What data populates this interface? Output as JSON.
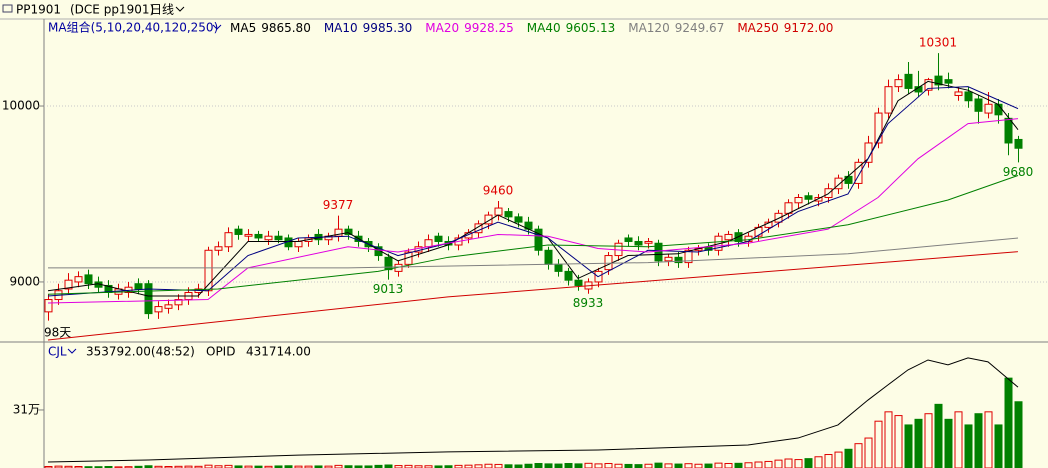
{
  "chart_data": {
    "type": "candlestick",
    "title": "PP1901",
    "subtitle": "(DCE pp1901)",
    "period": "日线",
    "ma_group": "MA组合(5,10,20,40,120,250)",
    "days_label": "98天",
    "ylim": [
      8670,
      10489
    ],
    "yticks": [
      9000,
      10000
    ],
    "grid": true,
    "up_color": "#e00000",
    "down_color": "#008000",
    "open": [
      8830,
      8900,
      8960,
      9000,
      9040,
      9000,
      8980,
      8930,
      8940,
      8990,
      8990,
      8830,
      8850,
      8870,
      8900,
      8940,
      8950,
      9180,
      9200,
      9300,
      9260,
      9270,
      9240,
      9260,
      9250,
      9200,
      9230,
      9270,
      9240,
      9260,
      9300,
      9260,
      9230,
      9200,
      9140,
      9060,
      9100,
      9170,
      9200,
      9260,
      9230,
      9210,
      9250,
      9280,
      9330,
      9380,
      9400,
      9370,
      9340,
      9300,
      9180,
      9100,
      9060,
      9010,
      8960,
      9000,
      9070,
      9150,
      9250,
      9230,
      9220,
      9220,
      9120,
      9140,
      9110,
      9180,
      9200,
      9180,
      9240,
      9280,
      9230,
      9260,
      9310,
      9340,
      9390,
      9450,
      9490,
      9460,
      9480,
      9530,
      9600,
      9560,
      9680,
      9790,
      9960,
      10110,
      10180,
      10110,
      10090,
      10170,
      10150,
      10060,
      10080,
      10040,
      9960,
      10010,
      9930,
      9810
    ],
    "high": [
      8930,
      8990,
      9050,
      9060,
      9070,
      9030,
      9010,
      8990,
      9000,
      9020,
      9010,
      8890,
      8900,
      8930,
      8970,
      8990,
      9200,
      9230,
      9310,
      9320,
      9300,
      9290,
      9290,
      9290,
      9270,
      9250,
      9270,
      9300,
      9280,
      9377,
      9320,
      9290,
      9250,
      9220,
      9160,
      9120,
      9190,
      9230,
      9270,
      9280,
      9260,
      9270,
      9300,
      9350,
      9400,
      9460,
      9420,
      9390,
      9370,
      9320,
      9200,
      9130,
      9080,
      9040,
      9020,
      9080,
      9170,
      9240,
      9270,
      9260,
      9250,
      9240,
      9160,
      9170,
      9200,
      9210,
      9220,
      9280,
      9290,
      9300,
      9280,
      9330,
      9360,
      9410,
      9470,
      9500,
      9510,
      9500,
      9560,
      9610,
      9630,
      9700,
      9830,
      9990,
      10150,
      10180,
      10250,
      10200,
      10160,
      10301,
      10190,
      10110,
      10110,
      10060,
      10080,
      10040,
      9960,
      9830
    ],
    "low": [
      8780,
      8870,
      8930,
      8970,
      8960,
      8940,
      8910,
      8900,
      8910,
      8930,
      8790,
      8790,
      8820,
      8840,
      8870,
      8910,
      8920,
      9150,
      9170,
      9240,
      9230,
      9230,
      9210,
      9220,
      9180,
      9170,
      9200,
      9210,
      9210,
      9230,
      9240,
      9200,
      9170,
      9120,
      9013,
      9030,
      9080,
      9140,
      9170,
      9200,
      9180,
      9180,
      9220,
      9250,
      9300,
      9350,
      9340,
      9310,
      9270,
      9150,
      9070,
      9030,
      8980,
      8950,
      8933,
      8970,
      9040,
      9120,
      9200,
      9180,
      9190,
      9090,
      9090,
      9080,
      9080,
      9150,
      9150,
      9150,
      9200,
      9200,
      9200,
      9230,
      9280,
      9310,
      9360,
      9420,
      9440,
      9430,
      9450,
      9500,
      9530,
      9530,
      9650,
      9760,
      9930,
      10080,
      10070,
      10050,
      10060,
      10090,
      10100,
      10030,
      9990,
      9900,
      9930,
      9900,
      9720,
      9680
    ],
    "close": [
      8900,
      8950,
      9010,
      9030,
      8990,
      8970,
      8940,
      8960,
      8970,
      8960,
      8820,
      8860,
      8870,
      8900,
      8940,
      8960,
      9180,
      9200,
      9280,
      9270,
      9270,
      9250,
      9260,
      9240,
      9200,
      9230,
      9250,
      9240,
      9260,
      9300,
      9270,
      9230,
      9200,
      9150,
      9070,
      9100,
      9170,
      9200,
      9240,
      9230,
      9210,
      9250,
      9280,
      9330,
      9380,
      9420,
      9370,
      9340,
      9300,
      9180,
      9100,
      9060,
      9010,
      8980,
      9000,
      9060,
      9150,
      9220,
      9230,
      9210,
      9230,
      9120,
      9140,
      9110,
      9180,
      9190,
      9180,
      9260,
      9270,
      9230,
      9260,
      9310,
      9340,
      9390,
      9450,
      9480,
      9470,
      9480,
      9530,
      9590,
      9560,
      9680,
      9790,
      9960,
      10110,
      10150,
      10100,
      10080,
      10150,
      10120,
      10130,
      10080,
      10030,
      9970,
      10010,
      9950,
      9790,
      9760
    ],
    "annotations": [
      {
        "text": "9377",
        "color": "#e00000"
      },
      {
        "text": "9460",
        "color": "#e00000"
      },
      {
        "text": "10301",
        "color": "#e00000"
      },
      {
        "text": "9013",
        "color": "#008000"
      },
      {
        "text": "8933",
        "color": "#008000"
      },
      {
        "text": "9680",
        "color": "#008000"
      }
    ],
    "series": [
      {
        "name": "MA5",
        "legend_value": "9865.80",
        "color": "#000000",
        "x": [
          0,
          5,
          10,
          15,
          20,
          25,
          30,
          35,
          40,
          45,
          50,
          53,
          58,
          63,
          68,
          73,
          78,
          82,
          85,
          88,
          92,
          95,
          97
        ],
        "values": [
          8950,
          8990,
          8920,
          8920,
          9230,
          9230,
          9280,
          9120,
          9210,
          9380,
          9250,
          9020,
          9150,
          9160,
          9230,
          9360,
          9500,
          9700,
          10030,
          10140,
          10090,
          10010,
          9865.8
        ]
      },
      {
        "name": "MA10",
        "legend_value": "9985.30",
        "color": "#000080",
        "x": [
          0,
          10,
          16,
          20,
          25,
          30,
          35,
          40,
          45,
          50,
          55,
          60,
          65,
          70,
          75,
          80,
          84,
          88,
          92,
          97
        ],
        "values": [
          8920,
          8960,
          8950,
          9150,
          9250,
          9260,
          9150,
          9220,
          9340,
          9250,
          9030,
          9180,
          9170,
          9230,
          9400,
          9500,
          9900,
          10100,
          10110,
          9985.3
        ]
      },
      {
        "name": "MA20",
        "legend_value": "9928.25",
        "color": "#e000e0",
        "x": [
          0,
          16,
          20,
          30,
          35,
          45,
          50,
          55,
          60,
          70,
          78,
          83,
          87,
          92,
          97
        ],
        "values": [
          8880,
          8900,
          9080,
          9200,
          9170,
          9270,
          9260,
          9190,
          9170,
          9220,
          9300,
          9480,
          9700,
          9900,
          9928.25
        ]
      },
      {
        "name": "MA40",
        "legend_value": "9605.13",
        "color": "#008000",
        "x": [
          0,
          17,
          33,
          40,
          50,
          60,
          70,
          80,
          90,
          97
        ],
        "values": [
          8930,
          8960,
          9060,
          9140,
          9210,
          9200,
          9240,
          9325,
          9466,
          9605.13
        ]
      },
      {
        "name": "MA120",
        "legend_value": "9249.67",
        "color": "#808080",
        "x": [
          0,
          30,
          60,
          80,
          97
        ],
        "values": [
          9080,
          9080,
          9110,
          9160,
          9249.67
        ]
      },
      {
        "name": "MA250",
        "legend_value": "9172.00",
        "color": "#d00000",
        "x": [
          0,
          40,
          70,
          97
        ],
        "values": [
          8670,
          8915,
          9050,
          9172
        ]
      }
    ],
    "volume_pane": {
      "name": "CJL",
      "header": "353792.00(48:52)",
      "opid_name": "OPID",
      "opid_header": "431714.00",
      "ylim": [
        0,
        657000
      ],
      "yticks": [
        {
          "value": 310000,
          "label": "31万"
        }
      ],
      "values": [
        8000,
        10000,
        9000,
        8000,
        7000,
        7000,
        8000,
        6000,
        7000,
        9000,
        12000,
        9000,
        8000,
        9000,
        10000,
        9000,
        15000,
        12000,
        14000,
        11000,
        10000,
        10000,
        9000,
        11000,
        12000,
        10000,
        10000,
        11000,
        10000,
        14000,
        12000,
        11000,
        11000,
        14000,
        16000,
        13000,
        14000,
        12000,
        12000,
        11000,
        12000,
        14000,
        15000,
        17000,
        20000,
        19000,
        17000,
        16000,
        20000,
        24000,
        22000,
        21000,
        24000,
        22000,
        25000,
        22000,
        24000,
        20000,
        19000,
        18000,
        20000,
        26000,
        22000,
        21000,
        23000,
        20000,
        21000,
        26000,
        24000,
        25000,
        28000,
        32000,
        35000,
        42000,
        48000,
        45000,
        50000,
        60000,
        72000,
        85000,
        100000,
        130000,
        160000,
        250000,
        300000,
        280000,
        230000,
        260000,
        290000,
        340000,
        260000,
        300000,
        230000,
        290000,
        300000,
        230000,
        480000,
        353792
      ],
      "opid": {
        "color": "#000000",
        "x": [
          0,
          10,
          25,
          40,
          55,
          70,
          75,
          79,
          82,
          84,
          86,
          88,
          90,
          92,
          94,
          97
        ],
        "values": [
          32000,
          43000,
          69000,
          86000,
          96000,
          123000,
          160000,
          230000,
          363000,
          444000,
          524000,
          577000,
          551000,
          588000,
          567000,
          431714
        ]
      }
    }
  }
}
